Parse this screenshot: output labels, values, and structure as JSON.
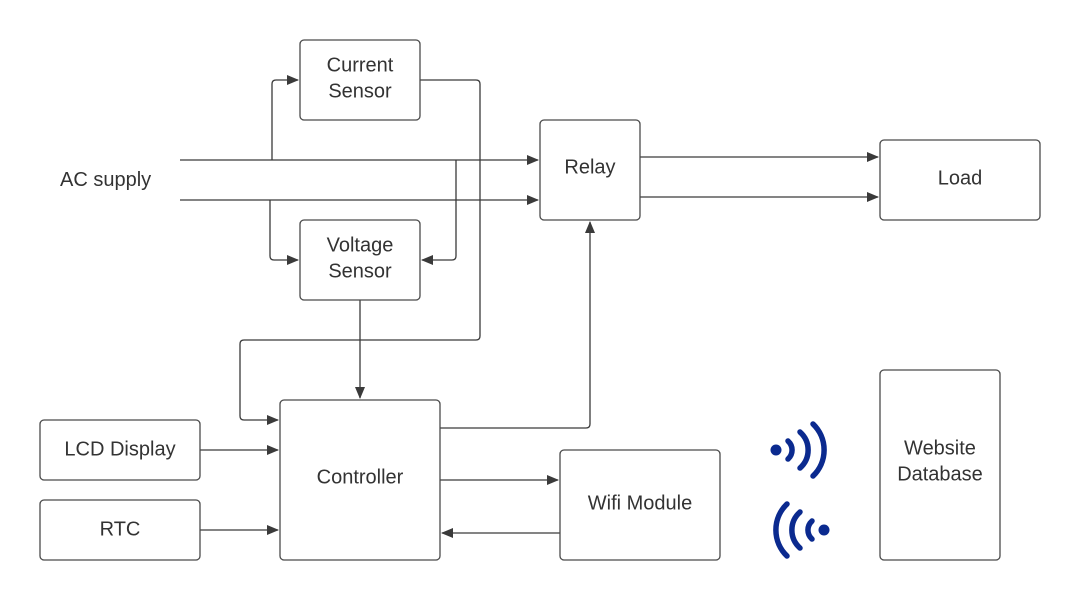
{
  "diagram": {
    "ac_supply_label": "AC supply",
    "nodes": {
      "current_sensor": [
        "Current",
        "Sensor"
      ],
      "voltage_sensor": [
        "Voltage",
        "Sensor"
      ],
      "relay": [
        "Relay"
      ],
      "load": [
        "Load"
      ],
      "controller": [
        "Controller"
      ],
      "lcd_display": [
        "LCD Display"
      ],
      "rtc": [
        "RTC"
      ],
      "wifi_module": [
        "Wifi Module"
      ],
      "website_database": [
        "Website",
        "Database"
      ]
    },
    "icons": {
      "wireless_tx": "wireless-signal-right-icon",
      "wireless_rx": "wireless-signal-left-icon"
    },
    "colors": {
      "wireless": "#0b2a8f",
      "stroke": "#4a4a4a"
    }
  }
}
